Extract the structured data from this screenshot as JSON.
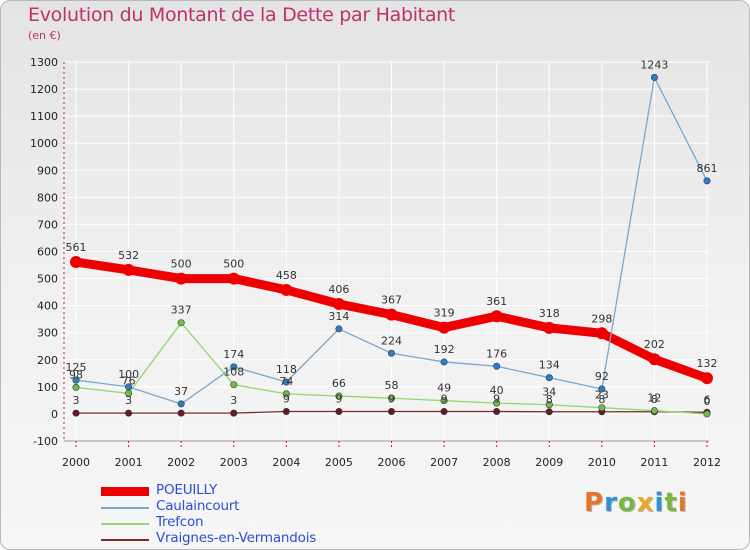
{
  "header": {
    "title": "Evolution du Montant de la Dette par Habitant",
    "subtitle": "(en €)"
  },
  "logo": {
    "text": "Proxiti",
    "letters": [
      {
        "ch": "P",
        "color": "#e8732a"
      },
      {
        "ch": "r",
        "color": "#2f8fd8"
      },
      {
        "ch": "o",
        "color": "#7ab640"
      },
      {
        "ch": "x",
        "color": "#e8a82a"
      },
      {
        "ch": "i",
        "color": "#2f8fd8"
      },
      {
        "ch": "t",
        "color": "#7ab640"
      },
      {
        "ch": "i",
        "color": "#e8732a"
      }
    ]
  },
  "chart_data": {
    "type": "line",
    "title": "Evolution du Montant de la Dette par Habitant",
    "subtitle": "(en €)",
    "x": [
      "2000",
      "2001",
      "2002",
      "2003",
      "2004",
      "2005",
      "2006",
      "2007",
      "2008",
      "2009",
      "2010",
      "2011",
      "2012"
    ],
    "ylim": [
      -100,
      1300
    ],
    "yticks": [
      -100,
      0,
      100,
      200,
      300,
      400,
      500,
      600,
      700,
      800,
      900,
      1000,
      1100,
      1200,
      1300
    ],
    "grid": true,
    "legend_position": "bottom-left",
    "series": [
      {
        "name": "POEUILLY",
        "color": "#ee0000",
        "marker_color": "#ee0000",
        "values": [
          561,
          532,
          500,
          500,
          458,
          406,
          367,
          319,
          361,
          318,
          298,
          202,
          132
        ],
        "labels": [
          "561",
          "532",
          "500",
          "500",
          "458",
          "406",
          "367",
          "319",
          "361",
          "318",
          "298",
          "202",
          "132"
        ]
      },
      {
        "name": "Caulaincourt",
        "color": "#78a8d0",
        "marker_color": "#2f7fc0",
        "values": [
          125,
          100,
          37,
          174,
          118,
          314,
          224,
          192,
          176,
          134,
          92,
          1243,
          861
        ],
        "labels": [
          "125",
          "100",
          "37",
          "174",
          "118",
          "314",
          "224",
          "192",
          "176",
          "134",
          "92",
          "1243",
          "861"
        ]
      },
      {
        "name": "Trefcon",
        "color": "#90d870",
        "marker_color": "#70c040",
        "values": [
          98,
          76,
          337,
          108,
          74,
          66,
          58,
          49,
          40,
          34,
          23,
          12,
          0
        ],
        "labels": [
          "98",
          "76",
          "337",
          "108",
          "74",
          "66",
          "58",
          "49",
          "40",
          "34",
          "23",
          "12",
          "0"
        ]
      },
      {
        "name": "Vraignes-en-Vermandois",
        "color": "#7a2a2a",
        "marker_color": "#6a1a1a",
        "values": [
          3,
          3,
          3,
          3,
          9,
          9,
          9,
          9,
          9,
          8,
          8,
          8,
          6
        ],
        "labels": [
          "3",
          "3",
          "",
          "3",
          "9",
          "9",
          "9",
          "9",
          "9",
          "8",
          "8",
          "8",
          "6"
        ]
      }
    ]
  }
}
